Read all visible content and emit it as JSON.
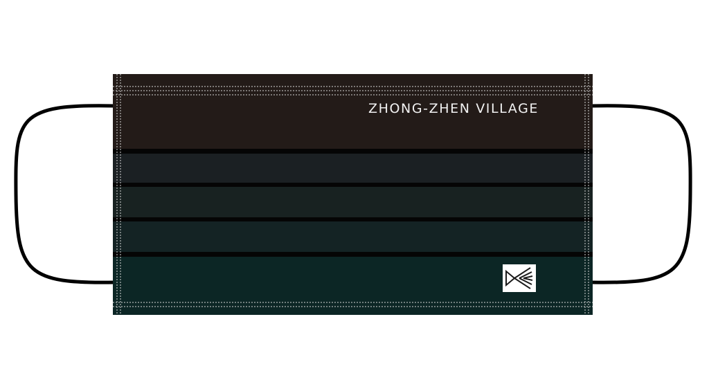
{
  "mask": {
    "print_text": "ZHONG-ZHEN VILLAGE",
    "logo_icon": "folded-ribbon-logo-icon",
    "colors": {
      "top_band": "#231b18",
      "band_2": "#1b2023",
      "band_3": "#182221",
      "band_4": "#142324",
      "bottom_band": "#0c2625",
      "pleat_line": "#050505",
      "stitch": "#d8d8d8",
      "ear_loop": "#000000",
      "logo_bg": "#ffffff",
      "logo_stroke": "#1a1a1a"
    }
  }
}
